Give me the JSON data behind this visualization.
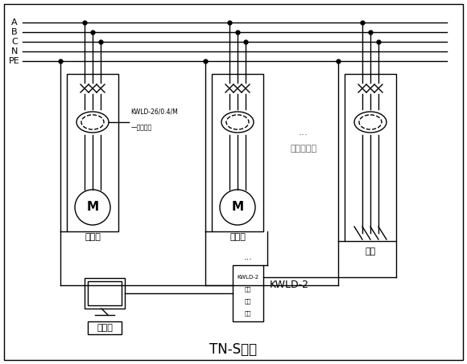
{
  "title": "TN-S系统",
  "bg_color": "#ffffff",
  "line_color": "#000000",
  "bus_labels": [
    "A",
    "B",
    "C",
    "N",
    "PE"
  ],
  "motor_label": "M",
  "label_motor1": "电动机",
  "label_motor2": "电动机",
  "label_feeder": "馈线",
  "label_kwld26": "KWLD-26/0.4/M",
  "label_current": "电流输出",
  "label_kwld2": "KWLD-2",
  "label_kwld2_inner": [
    "KWLD-2",
    "相地",
    "短路",
    "保护"
  ],
  "label_pc": "上位机",
  "label_jiu": "（计九路）",
  "label_dots": "..."
}
